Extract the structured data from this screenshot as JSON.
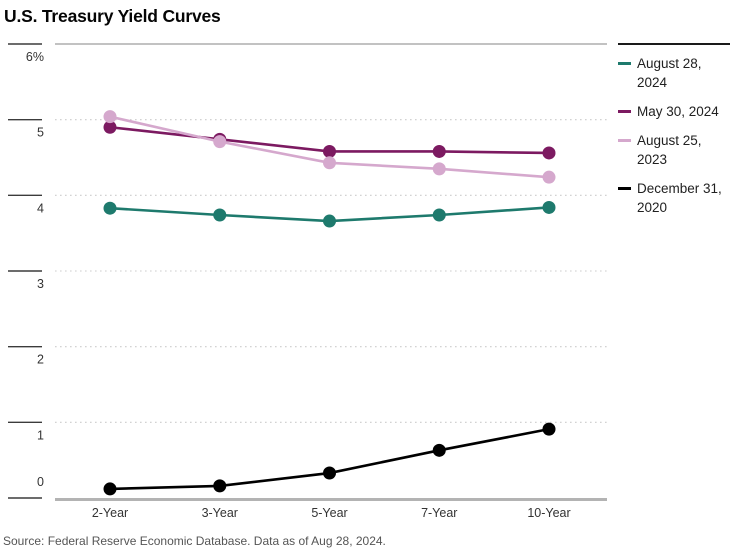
{
  "title": "U.S. Treasury Yield Curves",
  "source_note": "Source: Federal Reserve Economic Database. Data as of Aug 28, 2024.",
  "chart_data": {
    "type": "line",
    "title": "U.S. Treasury Yield Curves",
    "categories": [
      "2-Year",
      "3-Year",
      "5-Year",
      "7-Year",
      "10-Year"
    ],
    "series": [
      {
        "name": "August 28, 2024",
        "color": "#1e7a6d",
        "values": [
          3.83,
          3.74,
          3.66,
          3.74,
          3.84
        ]
      },
      {
        "name": "May 30, 2024",
        "color": "#7c1a61",
        "values": [
          4.9,
          4.74,
          4.58,
          4.58,
          4.56
        ]
      },
      {
        "name": "August 25, 2023",
        "color": "#d5a8cd",
        "values": [
          5.04,
          4.71,
          4.43,
          4.35,
          4.24
        ]
      },
      {
        "name": "December 31, 2020",
        "color": "#000000",
        "values": [
          0.12,
          0.16,
          0.33,
          0.63,
          0.91
        ]
      }
    ],
    "xlabel": "",
    "ylabel": "",
    "ylim": [
      0,
      6
    ],
    "yticks": [
      0,
      1,
      2,
      3,
      4,
      5,
      6
    ],
    "ytick_labels": [
      "0",
      "1",
      "2",
      "3",
      "4",
      "5",
      "6%"
    ],
    "grid": "horizontal-dotted",
    "legend_position": "right",
    "marker": "circle"
  },
  "colors": {
    "grid": "#cccccc",
    "plot_top_border": "#9e9e9e",
    "axis_bottom": "#b3b3b3",
    "tick": "#3c3c3c",
    "tick_label": "#333333",
    "legend_rule": "#1a1a1a",
    "legend_text": "#212121",
    "source_text": "#555555"
  }
}
